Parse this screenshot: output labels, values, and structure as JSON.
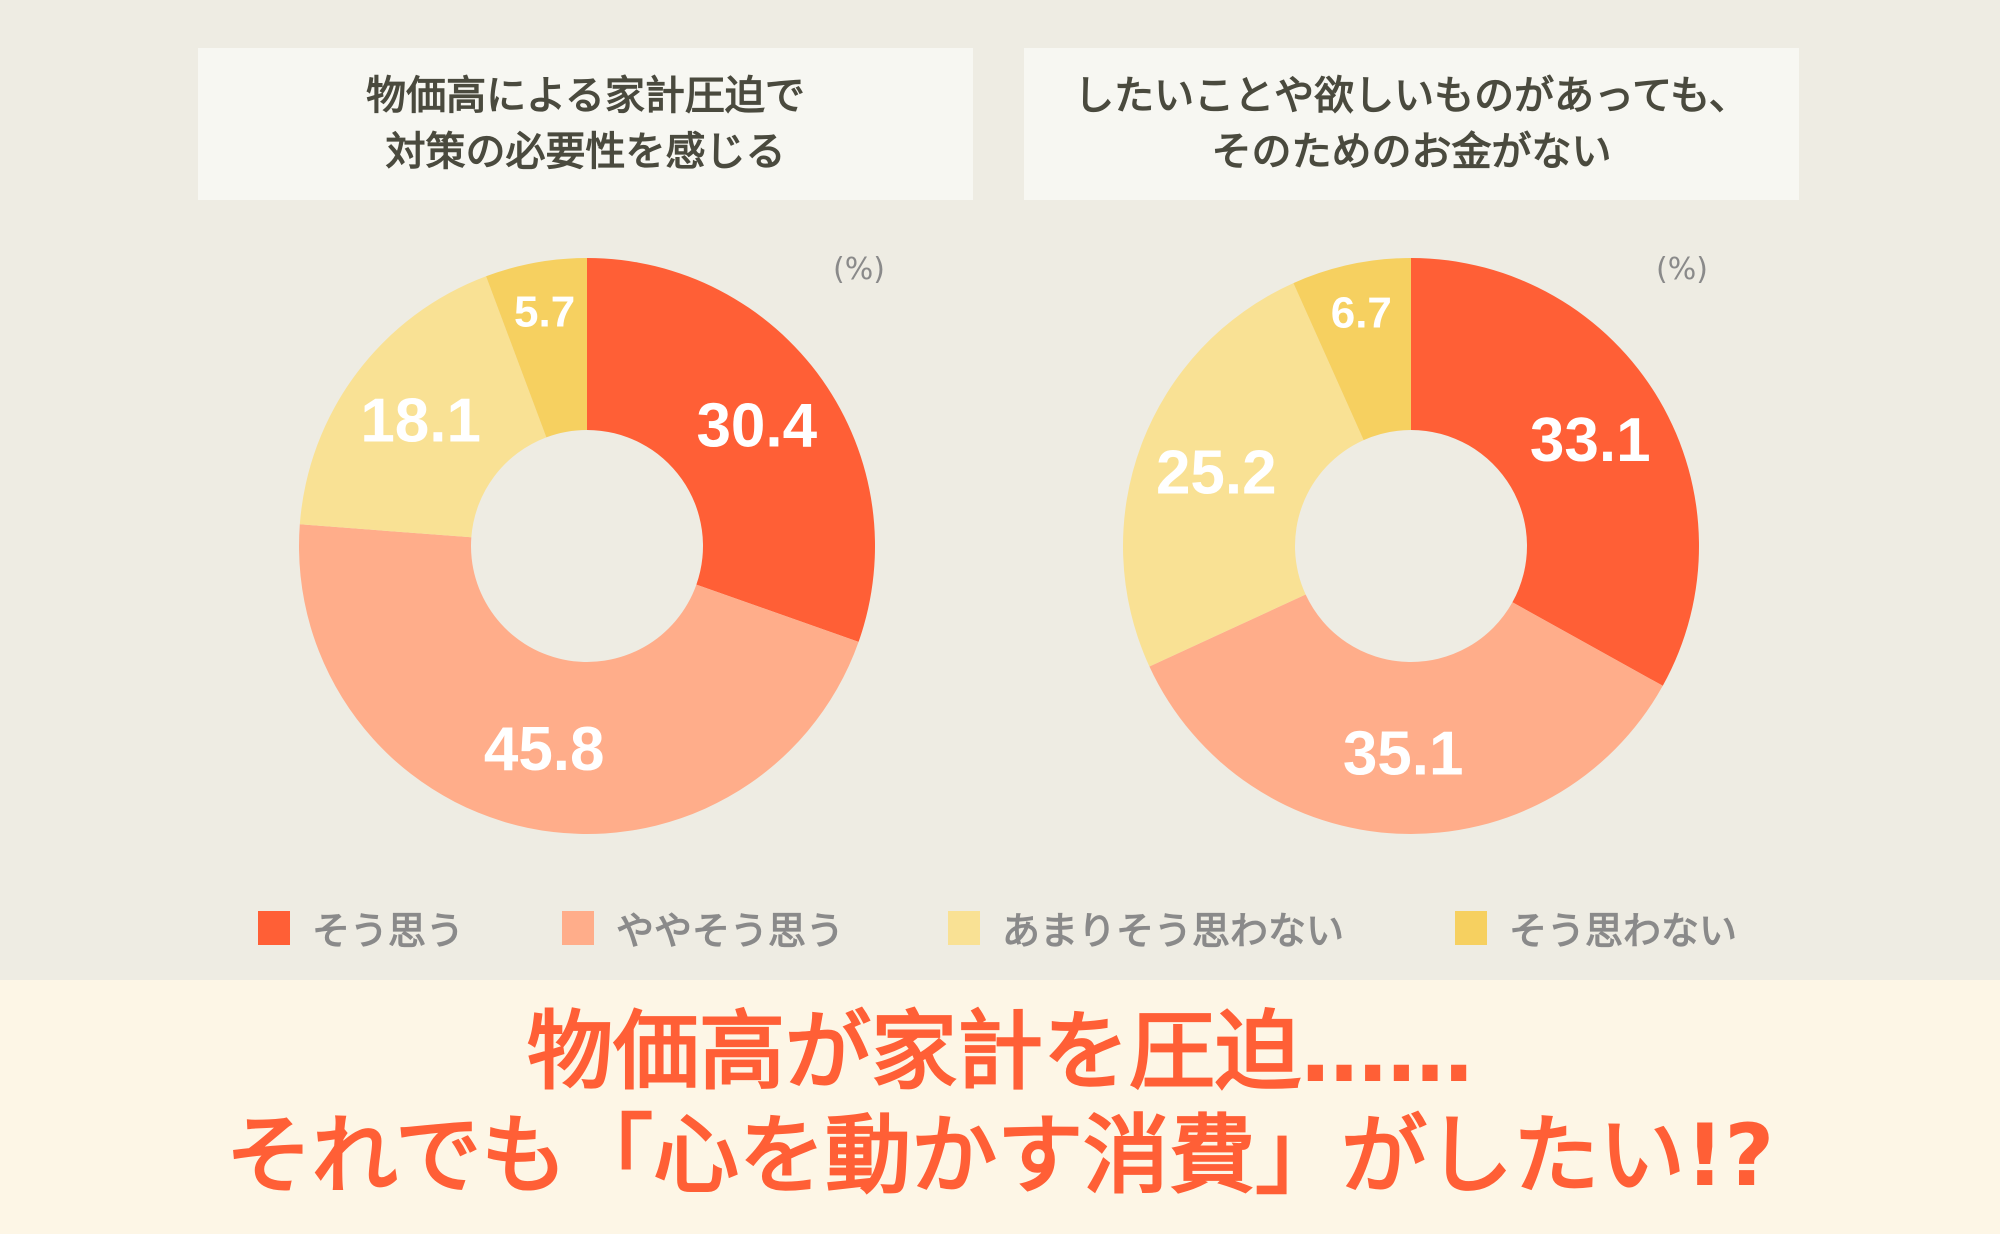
{
  "chart_data": [
    {
      "type": "pie",
      "title": "物価高による家計圧迫で\n対策の必要性を感じる",
      "title_lines": [
        "物価高による家計圧迫で",
        "対策の必要性を感じる"
      ],
      "unit": "(%)",
      "categories": [
        "そう思う",
        "ややそう思う",
        "あまりそう思わない",
        "そう思わない"
      ],
      "values": [
        30.4,
        45.8,
        18.1,
        5.7
      ],
      "labels": [
        "30.4",
        "45.8",
        "18.1",
        "5.7"
      ],
      "donut": true
    },
    {
      "type": "pie",
      "title": "したいことや欲しいものがあっても、\nそのためのお金がない",
      "title_lines": [
        "したいことや欲しいものがあっても、",
        "そのためのお金がない"
      ],
      "unit": "(%)",
      "categories": [
        "そう思う",
        "ややそう思う",
        "あまりそう思わない",
        "そう思わない"
      ],
      "values": [
        33.1,
        35.1,
        25.2,
        6.7
      ],
      "labels": [
        "33.1",
        "35.1",
        "25.2",
        "6.7"
      ],
      "donut": true
    }
  ],
  "legend": {
    "placement": "bottom",
    "items": [
      {
        "label": "そう思う",
        "color": "#ff5f36"
      },
      {
        "label": "ややそう思う",
        "color": "#ffad8a"
      },
      {
        "label": "あまりそう思わない",
        "color": "#f9e194"
      },
      {
        "label": "そう思わない",
        "color": "#f6d060"
      }
    ]
  },
  "headline": {
    "line1": "物価高が家計を圧迫……",
    "line2": "それでも「心を動かす消費」がしたい!?"
  }
}
